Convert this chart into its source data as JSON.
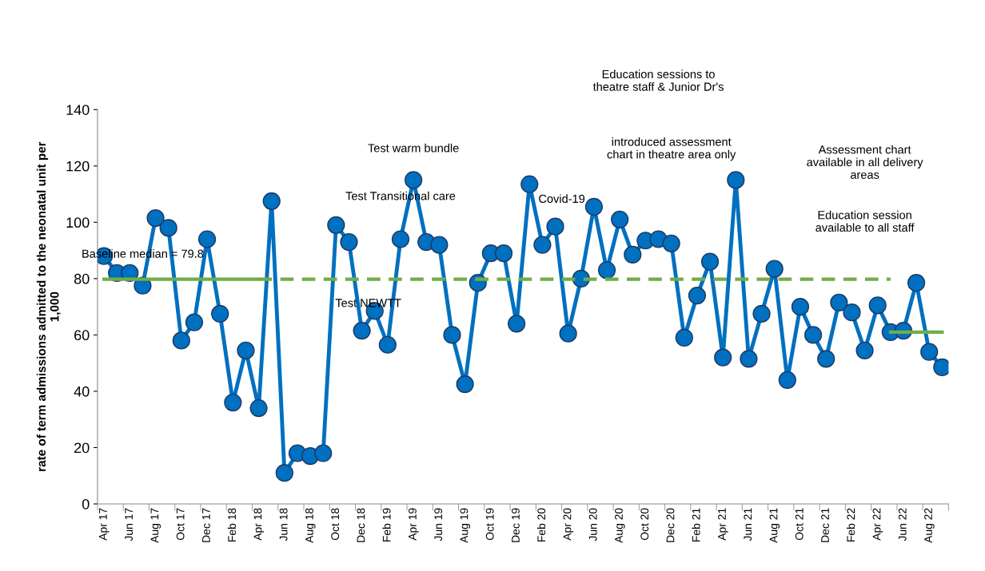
{
  "chart_data": {
    "type": "line",
    "ylabel": "rate of term admissions admitted to the neonatal unit per\n1,000",
    "categories": [
      "Apr 17",
      null,
      "Jun 17",
      null,
      "Aug 17",
      null,
      "Oct 17",
      null,
      "Dec 17",
      null,
      "Feb 18",
      null,
      "Apr 18",
      null,
      "Jun 18",
      null,
      "Aug 18",
      null,
      "Oct 18",
      null,
      "Dec 18",
      null,
      "Feb 19",
      null,
      "Apr 19",
      null,
      "Jun 19",
      null,
      "Aug 19",
      null,
      "Oct 19",
      null,
      "Dec 19",
      null,
      "Feb 20",
      null,
      "Apr 20",
      null,
      "Jun 20",
      null,
      "Aug 20",
      null,
      "Oct 20",
      null,
      "Dec 20",
      null,
      "Feb 21",
      null,
      "Apr 21",
      null,
      "Jun 21",
      null,
      "Aug 21",
      null,
      "Oct 21",
      null,
      "Dec 21",
      null,
      "Feb 22",
      null,
      "Apr 22",
      null,
      "Jun 22",
      null,
      "Aug 22",
      null
    ],
    "series": [
      {
        "color": "#0070c0",
        "marker": "circle",
        "line_style": "solid",
        "values": [
          88,
          82,
          82,
          77.5,
          101.5,
          98,
          58,
          64.5,
          94,
          67.5,
          36,
          54.5,
          34,
          107.5,
          11,
          18,
          17,
          18,
          99,
          93,
          61.5,
          68.5,
          56.5,
          94,
          115,
          93,
          92,
          60,
          42.5,
          78.5,
          89,
          89,
          64,
          113.5,
          92,
          98.5,
          60.5,
          80,
          105.5,
          83,
          101,
          88.5,
          93.5,
          94,
          92.5,
          59,
          74,
          86,
          52,
          115,
          51.5,
          67.5,
          83.5,
          44,
          70,
          60,
          51.5,
          71.5,
          68,
          54.5,
          70.5,
          61,
          61.5,
          78.5,
          54,
          48.5
        ]
      },
      {
        "color": "#70ad47",
        "marker": "none",
        "line_style": "solid",
        "values": [
          79.8,
          79.8,
          79.8,
          79.8,
          79.8,
          79.8,
          79.8,
          79.8,
          79.8,
          79.8,
          79.8,
          79.8,
          79.8,
          null,
          null,
          null,
          null,
          null,
          null,
          null,
          null,
          null,
          null,
          null,
          null,
          null,
          null,
          null,
          null,
          null,
          null,
          null,
          null,
          null,
          null,
          null,
          null,
          null,
          null,
          null,
          null,
          null,
          null,
          null,
          null,
          null,
          null,
          null,
          null,
          null,
          null,
          null,
          null,
          null,
          null,
          null,
          null,
          null,
          null,
          null,
          null,
          null,
          null,
          null,
          null,
          null
        ]
      },
      {
        "color": "#70ad47",
        "marker": "none",
        "line_style": "dashed",
        "values": [
          null,
          null,
          null,
          null,
          null,
          null,
          null,
          null,
          null,
          null,
          null,
          null,
          79.8,
          79.8,
          79.8,
          79.8,
          79.8,
          79.8,
          79.8,
          79.8,
          79.8,
          79.8,
          79.8,
          79.8,
          79.8,
          79.8,
          79.8,
          79.8,
          79.8,
          79.8,
          79.8,
          79.8,
          79.8,
          79.8,
          79.8,
          79.8,
          79.8,
          79.8,
          79.8,
          79.8,
          79.8,
          79.8,
          79.8,
          79.8,
          79.8,
          79.8,
          79.8,
          79.8,
          79.8,
          79.8,
          79.8,
          79.8,
          79.8,
          79.8,
          79.8,
          79.8,
          79.8,
          79.8,
          79.8,
          79.8,
          79.8,
          79.8,
          null,
          null,
          null,
          null
        ]
      },
      {
        "color": "#70ad47",
        "marker": "none",
        "line_style": "solid",
        "values": [
          null,
          null,
          null,
          null,
          null,
          null,
          null,
          null,
          null,
          null,
          null,
          null,
          null,
          null,
          null,
          null,
          null,
          null,
          null,
          null,
          null,
          null,
          null,
          null,
          null,
          null,
          null,
          null,
          null,
          null,
          null,
          null,
          null,
          null,
          null,
          null,
          null,
          null,
          null,
          null,
          null,
          null,
          null,
          null,
          null,
          null,
          null,
          null,
          null,
          null,
          null,
          null,
          null,
          null,
          null,
          null,
          null,
          null,
          null,
          null,
          null,
          61,
          61,
          61,
          61,
          61
        ]
      }
    ],
    "ylim": [
      0,
      140
    ],
    "yticks": [
      0,
      20,
      40,
      60,
      80,
      100,
      120,
      140
    ],
    "grid": false,
    "legend": false,
    "annotations": [
      "Baseline median = 79.8",
      "Test warm bundle",
      "Test Transitional care",
      "Test NEWTT",
      "Covid-19",
      "Education sessions to\ntheatre staff & Junior Dr's",
      "introduced assessment\nchart in theatre area only",
      "Education session\navailable to all staff",
      "Assessment chart\navailable in all delivery\nareas"
    ]
  }
}
